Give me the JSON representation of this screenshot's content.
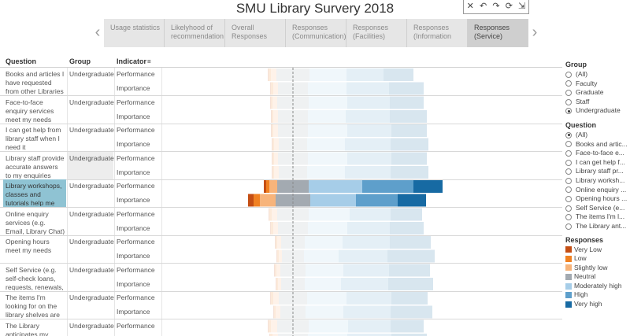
{
  "title": "SMU Library Survery 2018",
  "toolbar": {
    "close": "✕",
    "undo": "↶",
    "redo": "↷",
    "refresh": "⟳",
    "expand": "⇲"
  },
  "story": {
    "prev": "‹",
    "next": "›",
    "points": [
      {
        "label": "Usage statistics"
      },
      {
        "label": "Likelyhood of recommendation"
      },
      {
        "label": "Overall Responses"
      },
      {
        "label": "Responses (Communication)"
      },
      {
        "label": "Responses (Facilities)"
      },
      {
        "label": "Responses (Information"
      },
      {
        "label": "Responses (Service)",
        "active": true
      }
    ]
  },
  "headers": {
    "question": "Question",
    "group": "Group",
    "indicator": "Indicator",
    "indicator_icon": "="
  },
  "indicators": {
    "performance": "Performance",
    "importance": "Importance"
  },
  "rows": [
    {
      "question": "Books and articles I have requested from other Libraries are d...",
      "group": "Undergraduate"
    },
    {
      "question": "Face-to-face enquiry services meet my needs",
      "group": "Undergraduate"
    },
    {
      "question": "I can get help from library staff when I need it",
      "group": "Undergraduate"
    },
    {
      "question": "Library staff provide accurate answers to my enquiries",
      "group": "Undergraduate",
      "highlight": true
    },
    {
      "question": "Library workshops, classes and tutorials help me with my lea...",
      "group": "Undergraduate",
      "selected": true
    },
    {
      "question": "Online enquiry services (e.g. Email, Library Chat) meet ...",
      "group": "Undergraduate"
    },
    {
      "question": "Opening hours meet my needs",
      "group": "Undergraduate"
    },
    {
      "question": "Self Service (e.g. self-check loans, requests, renewals, ...",
      "group": "Undergraduate"
    },
    {
      "question": "The items I'm looking for on the library shelves are usually t...",
      "group": "Undergraduate"
    },
    {
      "question": "The Library anticipates my",
      "group": "Undergraduate"
    }
  ],
  "legend": {
    "group_title": "Group",
    "group_options": [
      {
        "label": "(All)"
      },
      {
        "label": "Faculty"
      },
      {
        "label": "Graduate"
      },
      {
        "label": "Staff"
      },
      {
        "label": "Undergraduate",
        "selected": true
      }
    ],
    "question_title": "Question",
    "question_options": [
      {
        "label": "(All)",
        "selected": true
      },
      {
        "label": "Books and artic..."
      },
      {
        "label": "Face-to-face e..."
      },
      {
        "label": "I can get help f..."
      },
      {
        "label": "Library staff pr..."
      },
      {
        "label": "Library worksh..."
      },
      {
        "label": "Online enquiry ..."
      },
      {
        "label": "Opening hours ..."
      },
      {
        "label": "Self Service (e..."
      },
      {
        "label": "The items I'm l..."
      },
      {
        "label": "The Library ant..."
      }
    ],
    "responses_title": "Responses",
    "responses": [
      {
        "label": "Very Low",
        "color": "#c44e14"
      },
      {
        "label": "Low",
        "color": "#f08122"
      },
      {
        "label": "Slightly low",
        "color": "#f7b47b"
      },
      {
        "label": "Neutral",
        "color": "#a3aab1"
      },
      {
        "label": "Moderately high",
        "color": "#a6cde8"
      },
      {
        "label": "High",
        "color": "#5e9fcb"
      },
      {
        "label": "Very high",
        "color": "#176aa3"
      }
    ]
  },
  "chart_data": {
    "type": "bar",
    "stacked": "diverging",
    "series_names": [
      "Very Low",
      "Low",
      "Slightly low",
      "Neutral",
      "Moderately high",
      "High",
      "Very high"
    ],
    "series_colors": [
      "#c44e14",
      "#f08122",
      "#f7b47b",
      "#a3aab1",
      "#a6cde8",
      "#5e9fcb",
      "#176aa3"
    ],
    "faded": true,
    "highlighted_question": "Library workshops, classes and tutorials help me with my lea...",
    "bars": [
      {
        "question": "Books and articles I have requested from other Libraries are d...",
        "indicator": "Performance",
        "values": [
          1,
          3,
          7,
          42,
          47,
          47,
          38
        ]
      },
      {
        "question": "Books and articles I have requested from other Libraries are d...",
        "indicator": "Importance",
        "values": [
          1,
          3,
          6,
          38,
          49,
          54,
          44
        ]
      },
      {
        "question": "Face-to-face enquiry services meet my needs",
        "indicator": "Performance",
        "values": [
          1,
          2,
          6,
          40,
          49,
          54,
          43
        ]
      },
      {
        "question": "Face-to-face enquiry services meet my needs",
        "indicator": "Importance",
        "values": [
          1,
          2,
          6,
          38,
          48,
          56,
          47
        ]
      },
      {
        "question": "I can get help from library staff when I need it",
        "indicator": "Performance",
        "values": [
          1,
          2,
          6,
          38,
          50,
          56,
          45
        ]
      },
      {
        "question": "I can get help from library staff when I need it",
        "indicator": "Importance",
        "values": [
          1,
          2,
          6,
          36,
          48,
          58,
          48
        ]
      },
      {
        "question": "Library staff provide accurate answers to my enquiries",
        "indicator": "Performance",
        "values": [
          1,
          2,
          5,
          38,
          50,
          56,
          45
        ]
      },
      {
        "question": "Library staff provide accurate answers to my enquiries",
        "indicator": "Importance",
        "values": [
          1,
          2,
          6,
          36,
          48,
          58,
          48
        ]
      },
      {
        "question": "Library workshops, classes and tutorials help me with my lea...",
        "indicator": "Performance",
        "values": [
          3,
          4,
          10,
          40,
          68,
          65,
          37
        ]
      },
      {
        "question": "Library workshops, classes and tutorials help me with my lea...",
        "indicator": "Importance",
        "values": [
          7,
          8,
          20,
          44,
          58,
          53,
          36
        ]
      },
      {
        "question": "Online enquiry services (e.g. Email, Library Chat) meet ...",
        "indicator": "Performance",
        "values": [
          1,
          3,
          7,
          40,
          52,
          52,
          40
        ]
      },
      {
        "question": "Online enquiry services (e.g. Email, Library Chat) meet ...",
        "indicator": "Importance",
        "values": [
          1,
          3,
          6,
          38,
          50,
          54,
          43
        ]
      },
      {
        "question": "Opening hours meet my needs",
        "indicator": "Performance",
        "values": [
          1,
          2,
          5,
          30,
          48,
          60,
          52
        ]
      },
      {
        "question": "Opening hours meet my needs",
        "indicator": "Importance",
        "values": [
          1,
          2,
          4,
          28,
          44,
          62,
          60
        ]
      },
      {
        "question": "Self Service (e.g. self-check loans, requests, renewals, ...",
        "indicator": "Performance",
        "values": [
          1,
          2,
          5,
          32,
          48,
          58,
          52
        ]
      },
      {
        "question": "Self Service (e.g. self-check loans, requests, renewals, ...",
        "indicator": "Importance",
        "values": [
          1,
          2,
          4,
          30,
          46,
          60,
          57
        ]
      },
      {
        "question": "The items I'm looking for on the library shelves are usually t...",
        "indicator": "Performance",
        "values": [
          1,
          3,
          7,
          36,
          50,
          57,
          46
        ]
      },
      {
        "question": "The items I'm looking for on the library shelves are usually t...",
        "indicator": "Importance",
        "values": [
          1,
          2,
          6,
          32,
          48,
          60,
          53
        ]
      },
      {
        "question": "The Library anticipates my",
        "indicator": "Performance",
        "values": [
          1,
          3,
          8,
          40,
          50,
          54,
          42
        ]
      },
      {
        "question": "The Library anticipates my",
        "indicator": "Importance",
        "values": [
          1,
          3,
          7,
          38,
          50,
          56,
          45
        ]
      }
    ]
  }
}
